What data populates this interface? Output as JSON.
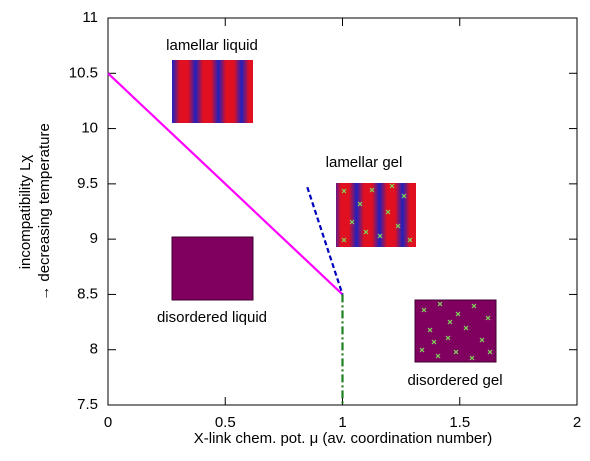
{
  "chart_data": {
    "type": "line",
    "xlabel": "X-link chem. pot. μ (av. coordination number)",
    "ylabel": [
      "incompatibility Lχ",
      "→ decreasing temperature"
    ],
    "xlim": [
      0,
      2
    ],
    "xticks": [
      0,
      0.5,
      1,
      1.5,
      2
    ],
    "ylim": [
      7.5,
      11
    ],
    "yticks": [
      7.5,
      8,
      8.5,
      9,
      9.5,
      10,
      10.5,
      11
    ],
    "series": [
      {
        "color": "#ff00ff",
        "style": "solid",
        "x": [
          0,
          1
        ],
        "values": [
          10.5,
          8.5
        ]
      },
      {
        "color": "#0000c0",
        "style": "dashed",
        "x": [
          0.85,
          1
        ],
        "values": [
          9.47,
          8.5
        ]
      },
      {
        "color": "#208020",
        "style": "dashdot",
        "x": [
          1,
          1
        ],
        "values": [
          8.5,
          7.5
        ]
      }
    ],
    "annotations": [
      "lamellar liquid",
      "lamellar gel",
      "disordered liquid",
      "disordered gel"
    ]
  }
}
